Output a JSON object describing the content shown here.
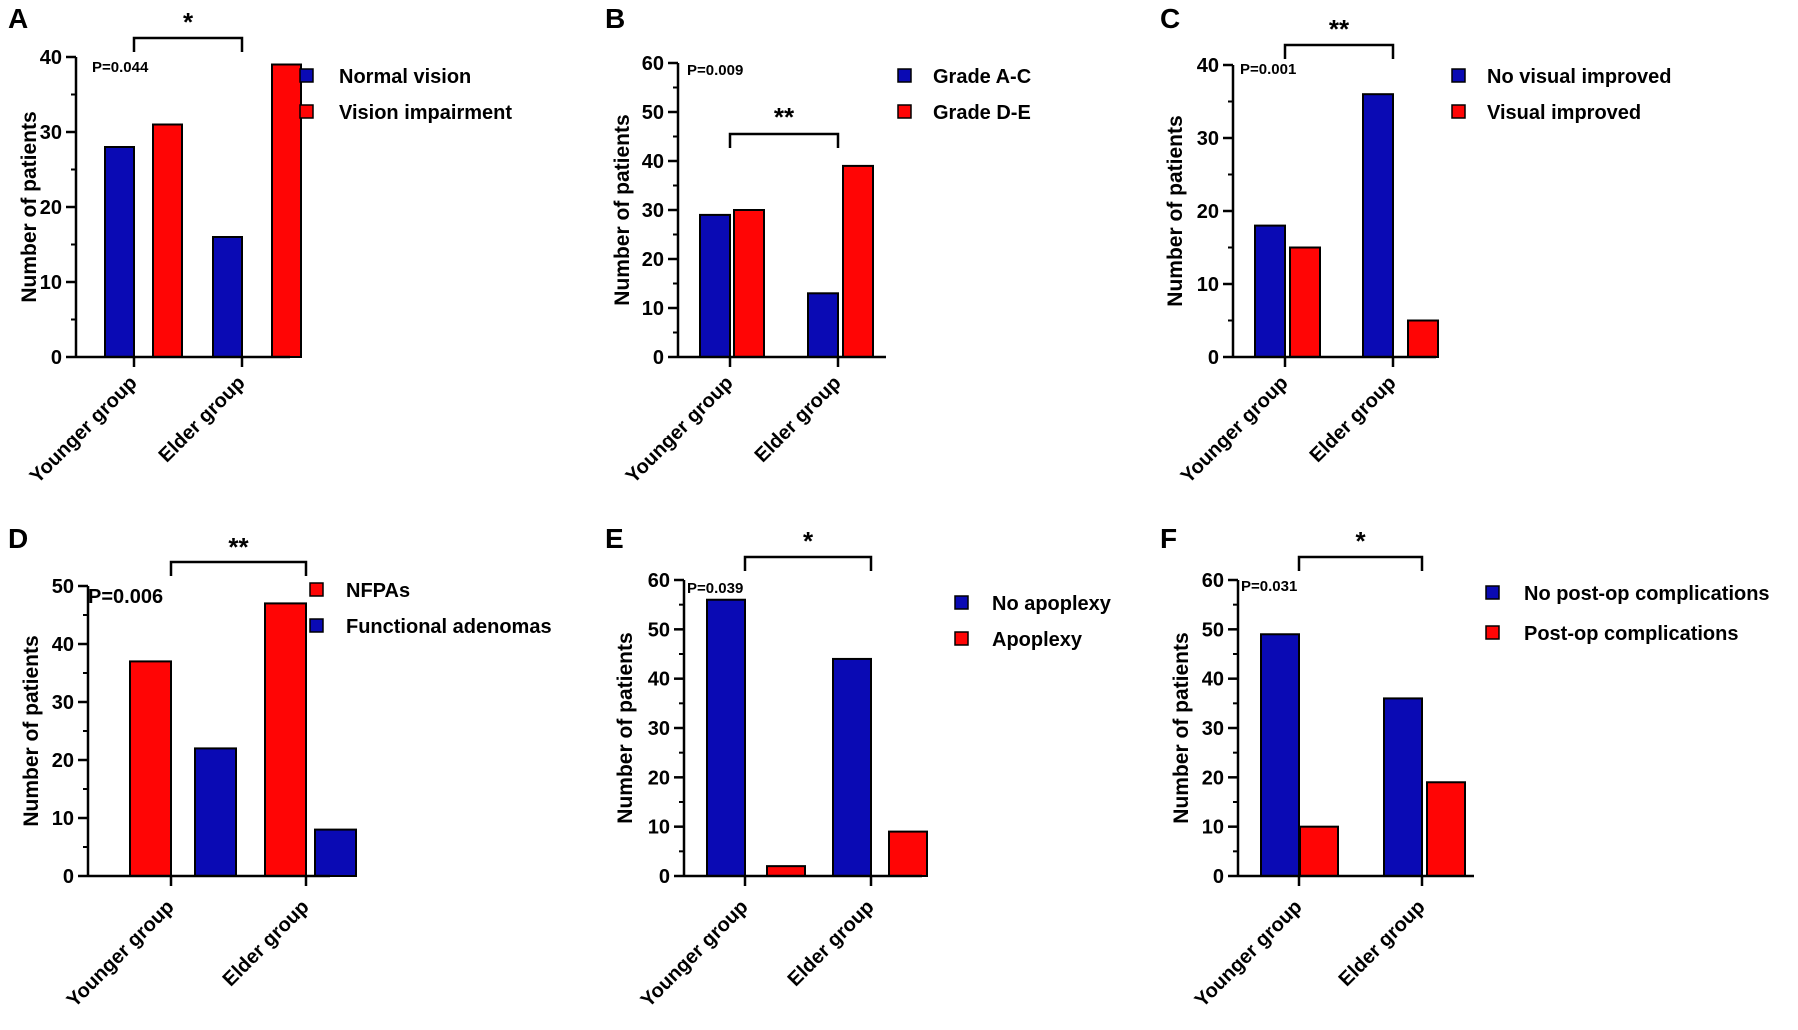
{
  "chart_data": [
    {
      "type": "bar",
      "panel": "A",
      "title": "",
      "xlabel": "",
      "ylabel": "Number of patients",
      "categories": [
        "Younger group",
        "Elder group"
      ],
      "ylim": [
        0,
        40
      ],
      "yticks": [
        0,
        10,
        20,
        30,
        40
      ],
      "p_value": "P=0.044",
      "significance": "*",
      "series": [
        {
          "name": "Normal vision",
          "color": "#0a0ab4",
          "values": [
            28,
            16
          ]
        },
        {
          "name": "Vision impairment",
          "color": "#ff0505",
          "values": [
            31,
            39
          ]
        }
      ]
    },
    {
      "type": "bar",
      "panel": "B",
      "title": "",
      "xlabel": "",
      "ylabel": "Number of patients",
      "categories": [
        "Younger group",
        "Elder group"
      ],
      "ylim": [
        0,
        60
      ],
      "yticks": [
        0,
        10,
        20,
        30,
        40,
        50,
        60
      ],
      "p_value": "P=0.009",
      "significance": "**",
      "series": [
        {
          "name": "Grade A-C",
          "color": "#0a0ab4",
          "values": [
            29,
            13
          ]
        },
        {
          "name": "Grade D-E",
          "color": "#ff0505",
          "values": [
            30,
            39
          ]
        }
      ]
    },
    {
      "type": "bar",
      "panel": "C",
      "title": "",
      "xlabel": "",
      "ylabel": "Number of patients",
      "categories": [
        "Younger group",
        "Elder group"
      ],
      "ylim": [
        0,
        40
      ],
      "yticks": [
        0,
        10,
        20,
        30,
        40
      ],
      "p_value": "P=0.001",
      "significance": "**",
      "series": [
        {
          "name": "No visual improved",
          "color": "#0a0ab4",
          "values": [
            18,
            36
          ]
        },
        {
          "name": "Visual improved",
          "color": "#ff0505",
          "values": [
            15,
            5
          ]
        }
      ]
    },
    {
      "type": "bar",
      "panel": "D",
      "title": "",
      "xlabel": "",
      "ylabel": "Number of patients",
      "categories": [
        "Younger group",
        "Elder group"
      ],
      "ylim": [
        0,
        50
      ],
      "yticks": [
        0,
        10,
        20,
        30,
        40,
        50
      ],
      "p_value": "P=0.006",
      "significance": "**",
      "series": [
        {
          "name": "NFPAs",
          "color": "#ff0505",
          "values": [
            37,
            47
          ]
        },
        {
          "name": "Functional adenomas",
          "color": "#0a0ab4",
          "values": [
            22,
            8
          ]
        }
      ]
    },
    {
      "type": "bar",
      "panel": "E",
      "title": "",
      "xlabel": "",
      "ylabel": "Number of patients",
      "categories": [
        "Younger group",
        "Elder group"
      ],
      "ylim": [
        0,
        60
      ],
      "yticks": [
        0,
        10,
        20,
        30,
        40,
        50,
        60
      ],
      "p_value": "P=0.039",
      "significance": "*",
      "series": [
        {
          "name": "No apoplexy",
          "color": "#0a0ab4",
          "values": [
            56,
            44
          ]
        },
        {
          "name": "Apoplexy",
          "color": "#ff0505",
          "values": [
            2,
            9
          ]
        }
      ]
    },
    {
      "type": "bar",
      "panel": "F",
      "title": "",
      "xlabel": "",
      "ylabel": "Number of patients",
      "categories": [
        "Younger group",
        "Elder group"
      ],
      "ylim": [
        0,
        60
      ],
      "yticks": [
        0,
        10,
        20,
        30,
        40,
        50,
        60
      ],
      "p_value": "P=0.031",
      "significance": "*",
      "series": [
        {
          "name": "No post-op complications",
          "color": "#0a0ab4",
          "values": [
            49,
            36
          ]
        },
        {
          "name": "Post-op complications",
          "color": "#ff0505",
          "values": [
            10,
            19
          ]
        }
      ]
    }
  ]
}
